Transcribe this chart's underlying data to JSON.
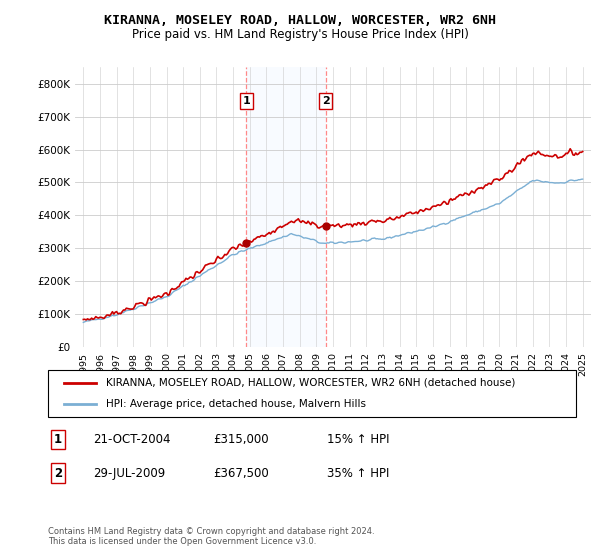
{
  "title": "KIRANNA, MOSELEY ROAD, HALLOW, WORCESTER, WR2 6NH",
  "subtitle": "Price paid vs. HM Land Registry's House Price Index (HPI)",
  "ylim": [
    0,
    850000
  ],
  "yticks": [
    0,
    100000,
    200000,
    300000,
    400000,
    500000,
    600000,
    700000,
    800000
  ],
  "ytick_labels": [
    "£0",
    "£100K",
    "£200K",
    "£300K",
    "£400K",
    "£500K",
    "£600K",
    "£700K",
    "£800K"
  ],
  "sale1_date": 2004.8,
  "sale1_price": 315000,
  "sale2_date": 2009.57,
  "sale2_price": 367500,
  "sale_color": "#cc0000",
  "hpi_color": "#7bafd4",
  "marker_color": "#aa0000",
  "band_color": "#ddeeff",
  "legend_line1": "KIRANNA, MOSELEY ROAD, HALLOW, WORCESTER, WR2 6NH (detached house)",
  "legend_line2": "HPI: Average price, detached house, Malvern Hills",
  "annotation1_date": "21-OCT-2004",
  "annotation1_price": "£315,000",
  "annotation1_hpi": "15% ↑ HPI",
  "annotation2_date": "29-JUL-2009",
  "annotation2_price": "£367,500",
  "annotation2_hpi": "35% ↑ HPI",
  "footer": "Contains HM Land Registry data © Crown copyright and database right 2024.\nThis data is licensed under the Open Government Licence v3.0.",
  "background_color": "#ffffff",
  "plot_bg_color": "#ffffff",
  "grid_color": "#cccccc"
}
